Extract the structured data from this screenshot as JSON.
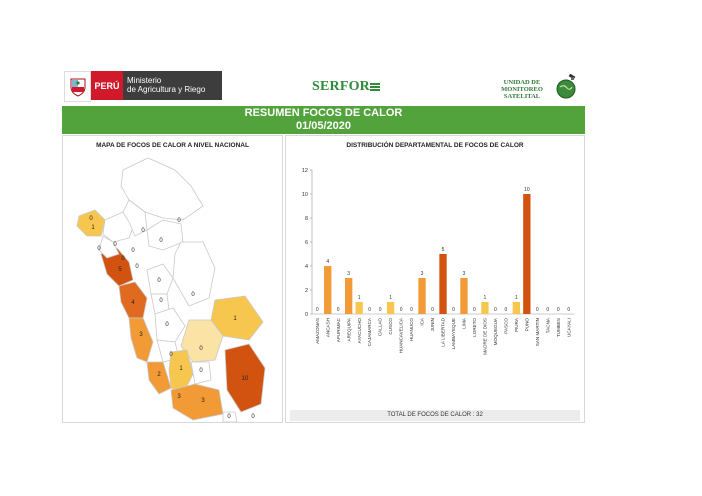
{
  "header": {
    "gov_country": "PERÚ",
    "gov_ministry_line1": "Ministerio",
    "gov_ministry_line2": "de Agricultura y Riego",
    "agency": "SERFOR",
    "unit_line1": "UNIDAD DE",
    "unit_line2": "MONITOREO",
    "unit_line3": "SATELITAL"
  },
  "banner": {
    "title": "RESUMEN FOCOS DE CALOR",
    "date": "01/05/2020"
  },
  "map_panel": {
    "title": "MAPA DE FOCOS DE CALOR A NIVEL NACIONAL",
    "labels": [
      "0",
      "0",
      "0",
      "1",
      "0",
      "0",
      "0",
      "0",
      "0",
      "0",
      "5",
      "4",
      "0",
      "0",
      "0",
      "0",
      "0",
      "1",
      "3",
      "2",
      "1",
      "3",
      "0",
      "0",
      "10",
      "3",
      "0",
      "0"
    ]
  },
  "chart_panel": {
    "title": "DISTRIBUCIÓN DEPARTAMENTAL DE FOCOS DE CALOR",
    "total_text": "TOTAL DE FOCOS DE CALOR : 32"
  },
  "colors": {
    "banner_green": "#53a33d",
    "peru_red": "#d0192b",
    "level_0": "#ffffff",
    "level_1": "#f7c64f",
    "level_2_3": "#f29a35",
    "level_4_5": "#e06a1f",
    "level_10": "#d2520f"
  },
  "chart_data": {
    "type": "bar",
    "title": "DISTRIBUCIÓN DEPARTAMENTAL DE FOCOS DE CALOR",
    "categories": [
      "AMAZONAS",
      "ANCASH",
      "APURIMAC",
      "AREQUIPA",
      "AYACUCHO",
      "CAJAMARCA",
      "CALLAO",
      "CUSCO",
      "HUANCAVELICA",
      "HUANUCO",
      "ICA",
      "JUNIN",
      "LA LIBERTAD",
      "LAMBAYEQUE",
      "LIMA",
      "LORETO",
      "MADRE DE DIOS",
      "MOQUEGUA",
      "PASCO",
      "PIURA",
      "PUNO",
      "SAN MARTIN",
      "TACNA",
      "TUMBES",
      "UCAYALI"
    ],
    "values": [
      0,
      4,
      0,
      3,
      1,
      0,
      0,
      1,
      0,
      0,
      3,
      0,
      5,
      0,
      3,
      0,
      1,
      0,
      0,
      1,
      10,
      0,
      0,
      0,
      0
    ],
    "ylim": [
      0,
      12
    ],
    "yticks": [
      "0",
      "2",
      "4",
      "6",
      "8",
      "10",
      "12"
    ],
    "grid": false,
    "bar_colors": {
      "1": "#f7c64f",
      "3": "#f29a35",
      "4": "#f29a35",
      "5": "#d2520f",
      "10": "#d2520f"
    }
  }
}
